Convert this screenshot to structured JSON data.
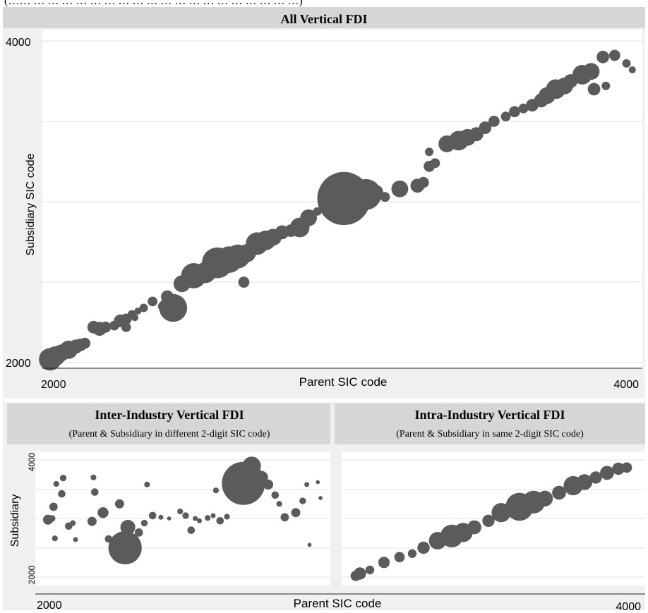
{
  "top_caption": "(…… … … … … … … … … … … … … … … … … … … …)",
  "colors": {
    "bubble": "#5b5b5b",
    "panel_bg": "#f0f0f0",
    "title_bar": "#d6d6d6",
    "grid": "#e0e0e0",
    "axis": "#222222"
  },
  "chart_data": [
    {
      "type": "scatter",
      "title": "All Vertical FDI",
      "subtitle": "",
      "xlabel": "Parent SIC code",
      "ylabel": "Subsidiary SIC code",
      "x_tick_labels": [
        "2000",
        "4000"
      ],
      "y_tick_labels": [
        "2000",
        "4000"
      ],
      "xlim": [
        2000,
        4000
      ],
      "ylim": [
        2000,
        4000
      ],
      "grid": "horizontal",
      "points": [
        {
          "x": 2012,
          "y": 2020,
          "size": 16
        },
        {
          "x": 2030,
          "y": 2040,
          "size": 14
        },
        {
          "x": 2050,
          "y": 2060,
          "size": 12
        },
        {
          "x": 2075,
          "y": 2080,
          "size": 13
        },
        {
          "x": 2100,
          "y": 2100,
          "size": 10
        },
        {
          "x": 2115,
          "y": 2110,
          "size": 9
        },
        {
          "x": 2130,
          "y": 2120,
          "size": 8
        },
        {
          "x": 2160,
          "y": 2220,
          "size": 9
        },
        {
          "x": 2180,
          "y": 2210,
          "size": 10
        },
        {
          "x": 2200,
          "y": 2220,
          "size": 8
        },
        {
          "x": 2230,
          "y": 2230,
          "size": 7
        },
        {
          "x": 2250,
          "y": 2260,
          "size": 9
        },
        {
          "x": 2270,
          "y": 2270,
          "size": 8
        },
        {
          "x": 2290,
          "y": 2300,
          "size": 6
        },
        {
          "x": 2310,
          "y": 2320,
          "size": 5
        },
        {
          "x": 2270,
          "y": 2220,
          "size": 7
        },
        {
          "x": 2300,
          "y": 2280,
          "size": 5
        },
        {
          "x": 2330,
          "y": 2340,
          "size": 6
        },
        {
          "x": 2360,
          "y": 2380,
          "size": 7
        },
        {
          "x": 2410,
          "y": 2410,
          "size": 9
        },
        {
          "x": 2395,
          "y": 2350,
          "size": 7
        },
        {
          "x": 2430,
          "y": 2340,
          "size": 20
        },
        {
          "x": 2460,
          "y": 2490,
          "size": 12
        },
        {
          "x": 2500,
          "y": 2540,
          "size": 18
        },
        {
          "x": 2540,
          "y": 2560,
          "size": 15
        },
        {
          "x": 2580,
          "y": 2620,
          "size": 22
        },
        {
          "x": 2620,
          "y": 2640,
          "size": 19
        },
        {
          "x": 2650,
          "y": 2660,
          "size": 17
        },
        {
          "x": 2680,
          "y": 2680,
          "size": 13
        },
        {
          "x": 2670,
          "y": 2500,
          "size": 8
        },
        {
          "x": 2690,
          "y": 2690,
          "size": 10
        },
        {
          "x": 2715,
          "y": 2740,
          "size": 16
        },
        {
          "x": 2745,
          "y": 2760,
          "size": 14
        },
        {
          "x": 2770,
          "y": 2780,
          "size": 12
        },
        {
          "x": 2800,
          "y": 2810,
          "size": 10
        },
        {
          "x": 2830,
          "y": 2820,
          "size": 9
        },
        {
          "x": 2860,
          "y": 2840,
          "size": 14
        },
        {
          "x": 2890,
          "y": 2900,
          "size": 12
        },
        {
          "x": 2920,
          "y": 2940,
          "size": 6
        },
        {
          "x": 2950,
          "y": 2970,
          "size": 9
        },
        {
          "x": 2980,
          "y": 2990,
          "size": 7
        },
        {
          "x": 3010,
          "y": 3020,
          "size": 38
        },
        {
          "x": 3085,
          "y": 3045,
          "size": 22
        },
        {
          "x": 3120,
          "y": 3060,
          "size": 10
        },
        {
          "x": 3150,
          "y": 3030,
          "size": 7
        },
        {
          "x": 3200,
          "y": 3080,
          "size": 12
        },
        {
          "x": 3260,
          "y": 3100,
          "size": 10
        },
        {
          "x": 3280,
          "y": 3120,
          "size": 8
        },
        {
          "x": 3300,
          "y": 3220,
          "size": 8
        },
        {
          "x": 3320,
          "y": 3240,
          "size": 7
        },
        {
          "x": 3300,
          "y": 3310,
          "size": 6
        },
        {
          "x": 3360,
          "y": 3360,
          "size": 12
        },
        {
          "x": 3400,
          "y": 3380,
          "size": 14
        },
        {
          "x": 3430,
          "y": 3400,
          "size": 12
        },
        {
          "x": 3460,
          "y": 3420,
          "size": 10
        },
        {
          "x": 3490,
          "y": 3460,
          "size": 9
        },
        {
          "x": 3520,
          "y": 3500,
          "size": 8
        },
        {
          "x": 3560,
          "y": 3530,
          "size": 7
        },
        {
          "x": 3590,
          "y": 3560,
          "size": 8
        },
        {
          "x": 3620,
          "y": 3580,
          "size": 7
        },
        {
          "x": 3650,
          "y": 3600,
          "size": 9
        },
        {
          "x": 3680,
          "y": 3630,
          "size": 10
        },
        {
          "x": 3700,
          "y": 3660,
          "size": 12
        },
        {
          "x": 3730,
          "y": 3700,
          "size": 14
        },
        {
          "x": 3760,
          "y": 3720,
          "size": 12
        },
        {
          "x": 3780,
          "y": 3750,
          "size": 10
        },
        {
          "x": 3820,
          "y": 3790,
          "size": 14
        },
        {
          "x": 3850,
          "y": 3810,
          "size": 12
        },
        {
          "x": 3860,
          "y": 3700,
          "size": 9
        },
        {
          "x": 3900,
          "y": 3720,
          "size": 6
        },
        {
          "x": 3890,
          "y": 3900,
          "size": 9
        },
        {
          "x": 3930,
          "y": 3910,
          "size": 8
        },
        {
          "x": 3970,
          "y": 3860,
          "size": 6
        },
        {
          "x": 3990,
          "y": 3820,
          "size": 5
        }
      ]
    },
    {
      "type": "scatter",
      "title": "Inter-Industry Vertical FDI",
      "subtitle": "(Parent & Subsidiary in different 2-digit SIC code)",
      "xlabel": "",
      "ylabel": "Subsidiary",
      "x_tick_labels": [
        "2000"
      ],
      "y_tick_labels": [
        "2000",
        "4000"
      ],
      "xlim": [
        2000,
        4000
      ],
      "ylim": [
        2000,
        4000
      ],
      "grid": "horizontal",
      "points": [
        {
          "x": 2000,
          "y": 2980,
          "size": 12
        },
        {
          "x": 2040,
          "y": 3200,
          "size": 10
        },
        {
          "x": 2100,
          "y": 3420,
          "size": 9
        },
        {
          "x": 2110,
          "y": 3690,
          "size": 8
        },
        {
          "x": 2060,
          "y": 3590,
          "size": 7
        },
        {
          "x": 2050,
          "y": 2660,
          "size": 7
        },
        {
          "x": 2030,
          "y": 3000,
          "size": 8
        },
        {
          "x": 2150,
          "y": 2870,
          "size": 9
        },
        {
          "x": 2180,
          "y": 2920,
          "size": 7
        },
        {
          "x": 2200,
          "y": 2640,
          "size": 6
        },
        {
          "x": 2320,
          "y": 2950,
          "size": 11
        },
        {
          "x": 2340,
          "y": 3450,
          "size": 9
        },
        {
          "x": 2330,
          "y": 3700,
          "size": 7
        },
        {
          "x": 2400,
          "y": 3100,
          "size": 13
        },
        {
          "x": 2440,
          "y": 2650,
          "size": 9
        },
        {
          "x": 2500,
          "y": 2600,
          "size": 15
        },
        {
          "x": 2520,
          "y": 3250,
          "size": 11
        },
        {
          "x": 2560,
          "y": 2500,
          "size": 40
        },
        {
          "x": 2580,
          "y": 2850,
          "size": 18
        },
        {
          "x": 2660,
          "y": 2760,
          "size": 10
        },
        {
          "x": 2700,
          "y": 2920,
          "size": 8
        },
        {
          "x": 2720,
          "y": 3580,
          "size": 7
        },
        {
          "x": 2760,
          "y": 3050,
          "size": 9
        },
        {
          "x": 2820,
          "y": 3020,
          "size": 6
        },
        {
          "x": 2880,
          "y": 3000,
          "size": 5
        },
        {
          "x": 2960,
          "y": 3120,
          "size": 7
        },
        {
          "x": 3000,
          "y": 3050,
          "size": 8
        },
        {
          "x": 3040,
          "y": 2800,
          "size": 9
        },
        {
          "x": 3070,
          "y": 3000,
          "size": 6
        },
        {
          "x": 3100,
          "y": 2960,
          "size": 6
        },
        {
          "x": 3160,
          "y": 3010,
          "size": 7
        },
        {
          "x": 3200,
          "y": 3050,
          "size": 6
        },
        {
          "x": 3220,
          "y": 3480,
          "size": 7
        },
        {
          "x": 3250,
          "y": 2960,
          "size": 9
        },
        {
          "x": 3300,
          "y": 3030,
          "size": 7
        },
        {
          "x": 3350,
          "y": 3560,
          "size": 26
        },
        {
          "x": 3420,
          "y": 3600,
          "size": 52
        },
        {
          "x": 3460,
          "y": 3750,
          "size": 30
        },
        {
          "x": 3480,
          "y": 3900,
          "size": 22
        },
        {
          "x": 3550,
          "y": 3700,
          "size": 16
        },
        {
          "x": 3600,
          "y": 3580,
          "size": 12
        },
        {
          "x": 3650,
          "y": 3400,
          "size": 9
        },
        {
          "x": 3680,
          "y": 3250,
          "size": 7
        },
        {
          "x": 3720,
          "y": 3020,
          "size": 10
        },
        {
          "x": 3800,
          "y": 3100,
          "size": 11
        },
        {
          "x": 3850,
          "y": 3300,
          "size": 8
        },
        {
          "x": 3880,
          "y": 3580,
          "size": 6
        },
        {
          "x": 3960,
          "y": 3620,
          "size": 5
        },
        {
          "x": 3980,
          "y": 3350,
          "size": 5
        },
        {
          "x": 3900,
          "y": 2550,
          "size": 5
        }
      ]
    },
    {
      "type": "scatter",
      "title": "Intra-Industry Vertical FDI",
      "subtitle": "(Parent & Subsidiary in same 2-digit SIC code)",
      "xlabel": "",
      "ylabel": "",
      "x_tick_labels": [
        "4000"
      ],
      "y_tick_labels": [],
      "xlim": [
        2000,
        4000
      ],
      "ylim": [
        2000,
        4000
      ],
      "grid": "horizontal",
      "points": [
        {
          "x": 2020,
          "y": 2020,
          "size": 12
        },
        {
          "x": 2050,
          "y": 2060,
          "size": 14
        },
        {
          "x": 2120,
          "y": 2120,
          "size": 10
        },
        {
          "x": 2220,
          "y": 2250,
          "size": 13
        },
        {
          "x": 2330,
          "y": 2340,
          "size": 12
        },
        {
          "x": 2420,
          "y": 2400,
          "size": 10
        },
        {
          "x": 2500,
          "y": 2500,
          "size": 14
        },
        {
          "x": 2600,
          "y": 2620,
          "size": 20
        },
        {
          "x": 2700,
          "y": 2700,
          "size": 26
        },
        {
          "x": 2780,
          "y": 2760,
          "size": 22
        },
        {
          "x": 2860,
          "y": 2850,
          "size": 16
        },
        {
          "x": 2960,
          "y": 2960,
          "size": 14
        },
        {
          "x": 3050,
          "y": 3100,
          "size": 22
        },
        {
          "x": 3180,
          "y": 3200,
          "size": 32
        },
        {
          "x": 3280,
          "y": 3280,
          "size": 26
        },
        {
          "x": 3360,
          "y": 3340,
          "size": 18
        },
        {
          "x": 3460,
          "y": 3440,
          "size": 16
        },
        {
          "x": 3560,
          "y": 3560,
          "size": 22
        },
        {
          "x": 3640,
          "y": 3620,
          "size": 18
        },
        {
          "x": 3720,
          "y": 3700,
          "size": 14
        },
        {
          "x": 3800,
          "y": 3780,
          "size": 16
        },
        {
          "x": 3880,
          "y": 3850,
          "size": 14
        },
        {
          "x": 3940,
          "y": 3870,
          "size": 12
        }
      ]
    }
  ],
  "shared_xlabel": "Parent SIC code",
  "bottom_x_tick_labels": [
    "2000",
    "4000"
  ]
}
